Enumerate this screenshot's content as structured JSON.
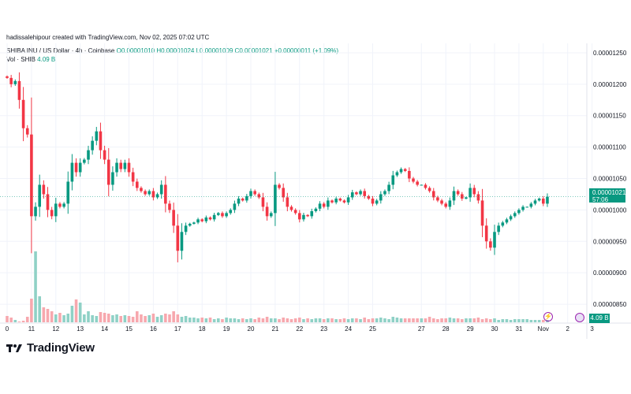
{
  "header": {
    "credit": "hadissalehipour created with TradingView.com, Nov 02, 2025 07:02 UTC",
    "symbol_line": "SHIBA INU / US Dollar · 4h · Coinbase",
    "ohlc_line": "O0.00001010 H0.00001024 L0.00001009 C0.00001021 +0.00000011 (+1.09%)",
    "vol_label": "Vol · SHIB",
    "vol_value": "4.09 B"
  },
  "badges": {
    "price": "0.00001021",
    "countdown": "57:06",
    "volume": "4.09 B"
  },
  "brand": {
    "name": "TradingView"
  },
  "colors": {
    "up": "#089981",
    "down": "#f23645",
    "up_vol": "#8fd1c6",
    "down_vol": "#f7a8ae",
    "price_line": "#089981"
  },
  "chart_data": {
    "type": "candlestick",
    "ylim": [
      8.2e-06,
      1.265e-05
    ],
    "y_ticks": [
      "0.00001250",
      "0.00001200",
      "0.00001150",
      "0.00001100",
      "0.00001050",
      "0.00001000",
      "0.00000950",
      "0.00000900",
      "0.00000850"
    ],
    "y_tick_values": [
      1.25e-05,
      1.2e-05,
      1.15e-05,
      1.1e-05,
      1.05e-05,
      1e-05,
      9.5e-06,
      9e-06,
      8.5e-06
    ],
    "x_ticks": [
      "0",
      "11",
      "12",
      "13",
      "14",
      "15",
      "16",
      "17",
      "18",
      "19",
      "20",
      "21",
      "22",
      "23",
      "24",
      "25",
      "27",
      "28",
      "29",
      "30",
      "31",
      "Nov",
      "2",
      "3"
    ],
    "x_tick_indices": [
      0,
      6,
      12,
      18,
      24,
      30,
      36,
      42,
      48,
      54,
      60,
      66,
      72,
      78,
      84,
      90,
      102,
      108,
      114,
      120,
      126,
      132,
      138,
      144
    ],
    "last_price": 1.021e-05,
    "closes": [
      1.21e-05,
      1.2e-05,
      1.205e-05,
      1.175e-05,
      1.13e-05,
      1.12e-05,
      9.9e-06,
      1.005e-05,
      1.04e-05,
      1.025e-05,
      1e-05,
      9.9e-06,
      1.01e-05,
      1.005e-05,
      1.01e-05,
      1.045e-05,
      1.075e-05,
      1.06e-05,
      1.075e-05,
      1.08e-05,
      1.095e-05,
      1.11e-05,
      1.125e-05,
      1.095e-05,
      1.08e-05,
      1.04e-05,
      1.06e-05,
      1.075e-05,
      1.065e-05,
      1.075e-05,
      1.06e-05,
      1.045e-05,
      1.035e-05,
      1.03e-05,
      1.025e-05,
      1.03e-05,
      1.02e-05,
      1.025e-05,
      1.04e-05,
      1.01e-05,
      1e-05,
      9.75e-06,
      9.35e-06,
      9.65e-06,
      9.75e-06,
      9.78e-06,
      9.8e-06,
      9.85e-06,
      9.82e-06,
      9.88e-06,
      9.85e-06,
      9.92e-06,
      9.95e-06,
      9.9e-06,
      9.95e-06,
      1e-05,
      1.01e-05,
      1.018e-05,
      1.015e-05,
      1.022e-05,
      1.03e-05,
      1.025e-05,
      1.02e-05,
      1.005e-05,
      9.9e-06,
      9.95e-06,
      1.04e-05,
      1.035e-05,
      1.02e-05,
      1.005e-05,
      1e-05,
      9.95e-06,
      9.85e-06,
      9.92e-06,
      9.9e-06,
      9.98e-06,
      1.002e-05,
      1.01e-05,
      1.005e-05,
      1.015e-05,
      1.012e-05,
      1.018e-05,
      1.015e-05,
      1.012e-05,
      1.02e-05,
      1.028e-05,
      1.025e-05,
      1.03e-05,
      1.022e-05,
      1.018e-05,
      1.01e-05,
      1.015e-05,
      1.025e-05,
      1.03e-05,
      1.04e-05,
      1.055e-05,
      1.06e-05,
      1.065e-05,
      1.062e-05,
      1.05e-05,
      1.045e-05,
      1.04e-05,
      1.04e-05,
      1.035e-05,
      1.03e-05,
      1.02e-05,
      1.015e-05,
      1.01e-05,
      1.005e-05,
      1.015e-05,
      1.03e-05,
      1.025e-05,
      1.018e-05,
      1.02e-05,
      1.035e-05,
      1.025e-05,
      1.015e-05,
      9.75e-06,
      9.5e-06,
      9.4e-06,
      9.65e-06,
      9.75e-06,
      9.8e-06,
      9.85e-06,
      9.9e-06,
      9.95e-06,
      1e-05,
      1.005e-05,
      1.005e-05,
      1.01e-05,
      1.015e-05,
      1.018e-05,
      1.01e-05,
      1.021e-05
    ],
    "volumes": [
      8,
      6,
      3,
      1,
      2,
      7,
      30,
      90,
      33,
      19,
      17,
      14,
      10,
      12,
      9,
      11,
      21,
      29,
      25,
      10,
      14,
      9,
      8,
      13,
      12,
      11,
      9,
      10,
      8,
      9,
      8,
      7,
      14,
      10,
      8,
      9,
      11,
      7,
      9,
      11,
      10,
      14,
      10,
      7,
      8,
      6,
      6,
      5,
      6,
      5,
      6,
      4,
      5,
      4,
      6,
      5,
      5,
      4,
      5,
      4,
      5,
      4,
      6,
      5,
      7,
      5,
      5,
      4,
      6,
      5,
      4,
      5,
      6,
      4,
      5,
      4,
      5,
      5,
      4,
      5,
      5,
      4,
      4,
      5,
      4,
      5,
      5,
      4,
      6,
      4,
      5,
      5,
      6,
      5,
      4,
      7,
      6,
      5,
      5,
      5,
      5,
      5,
      5,
      5,
      7,
      5,
      4,
      5,
      5,
      6,
      5,
      5,
      4,
      5,
      5,
      5,
      6,
      4,
      5,
      4,
      5,
      3,
      4,
      4,
      3,
      4,
      4,
      4,
      4,
      3,
      3,
      3,
      3,
      3,
      3,
      3,
      3,
      2
    ]
  }
}
